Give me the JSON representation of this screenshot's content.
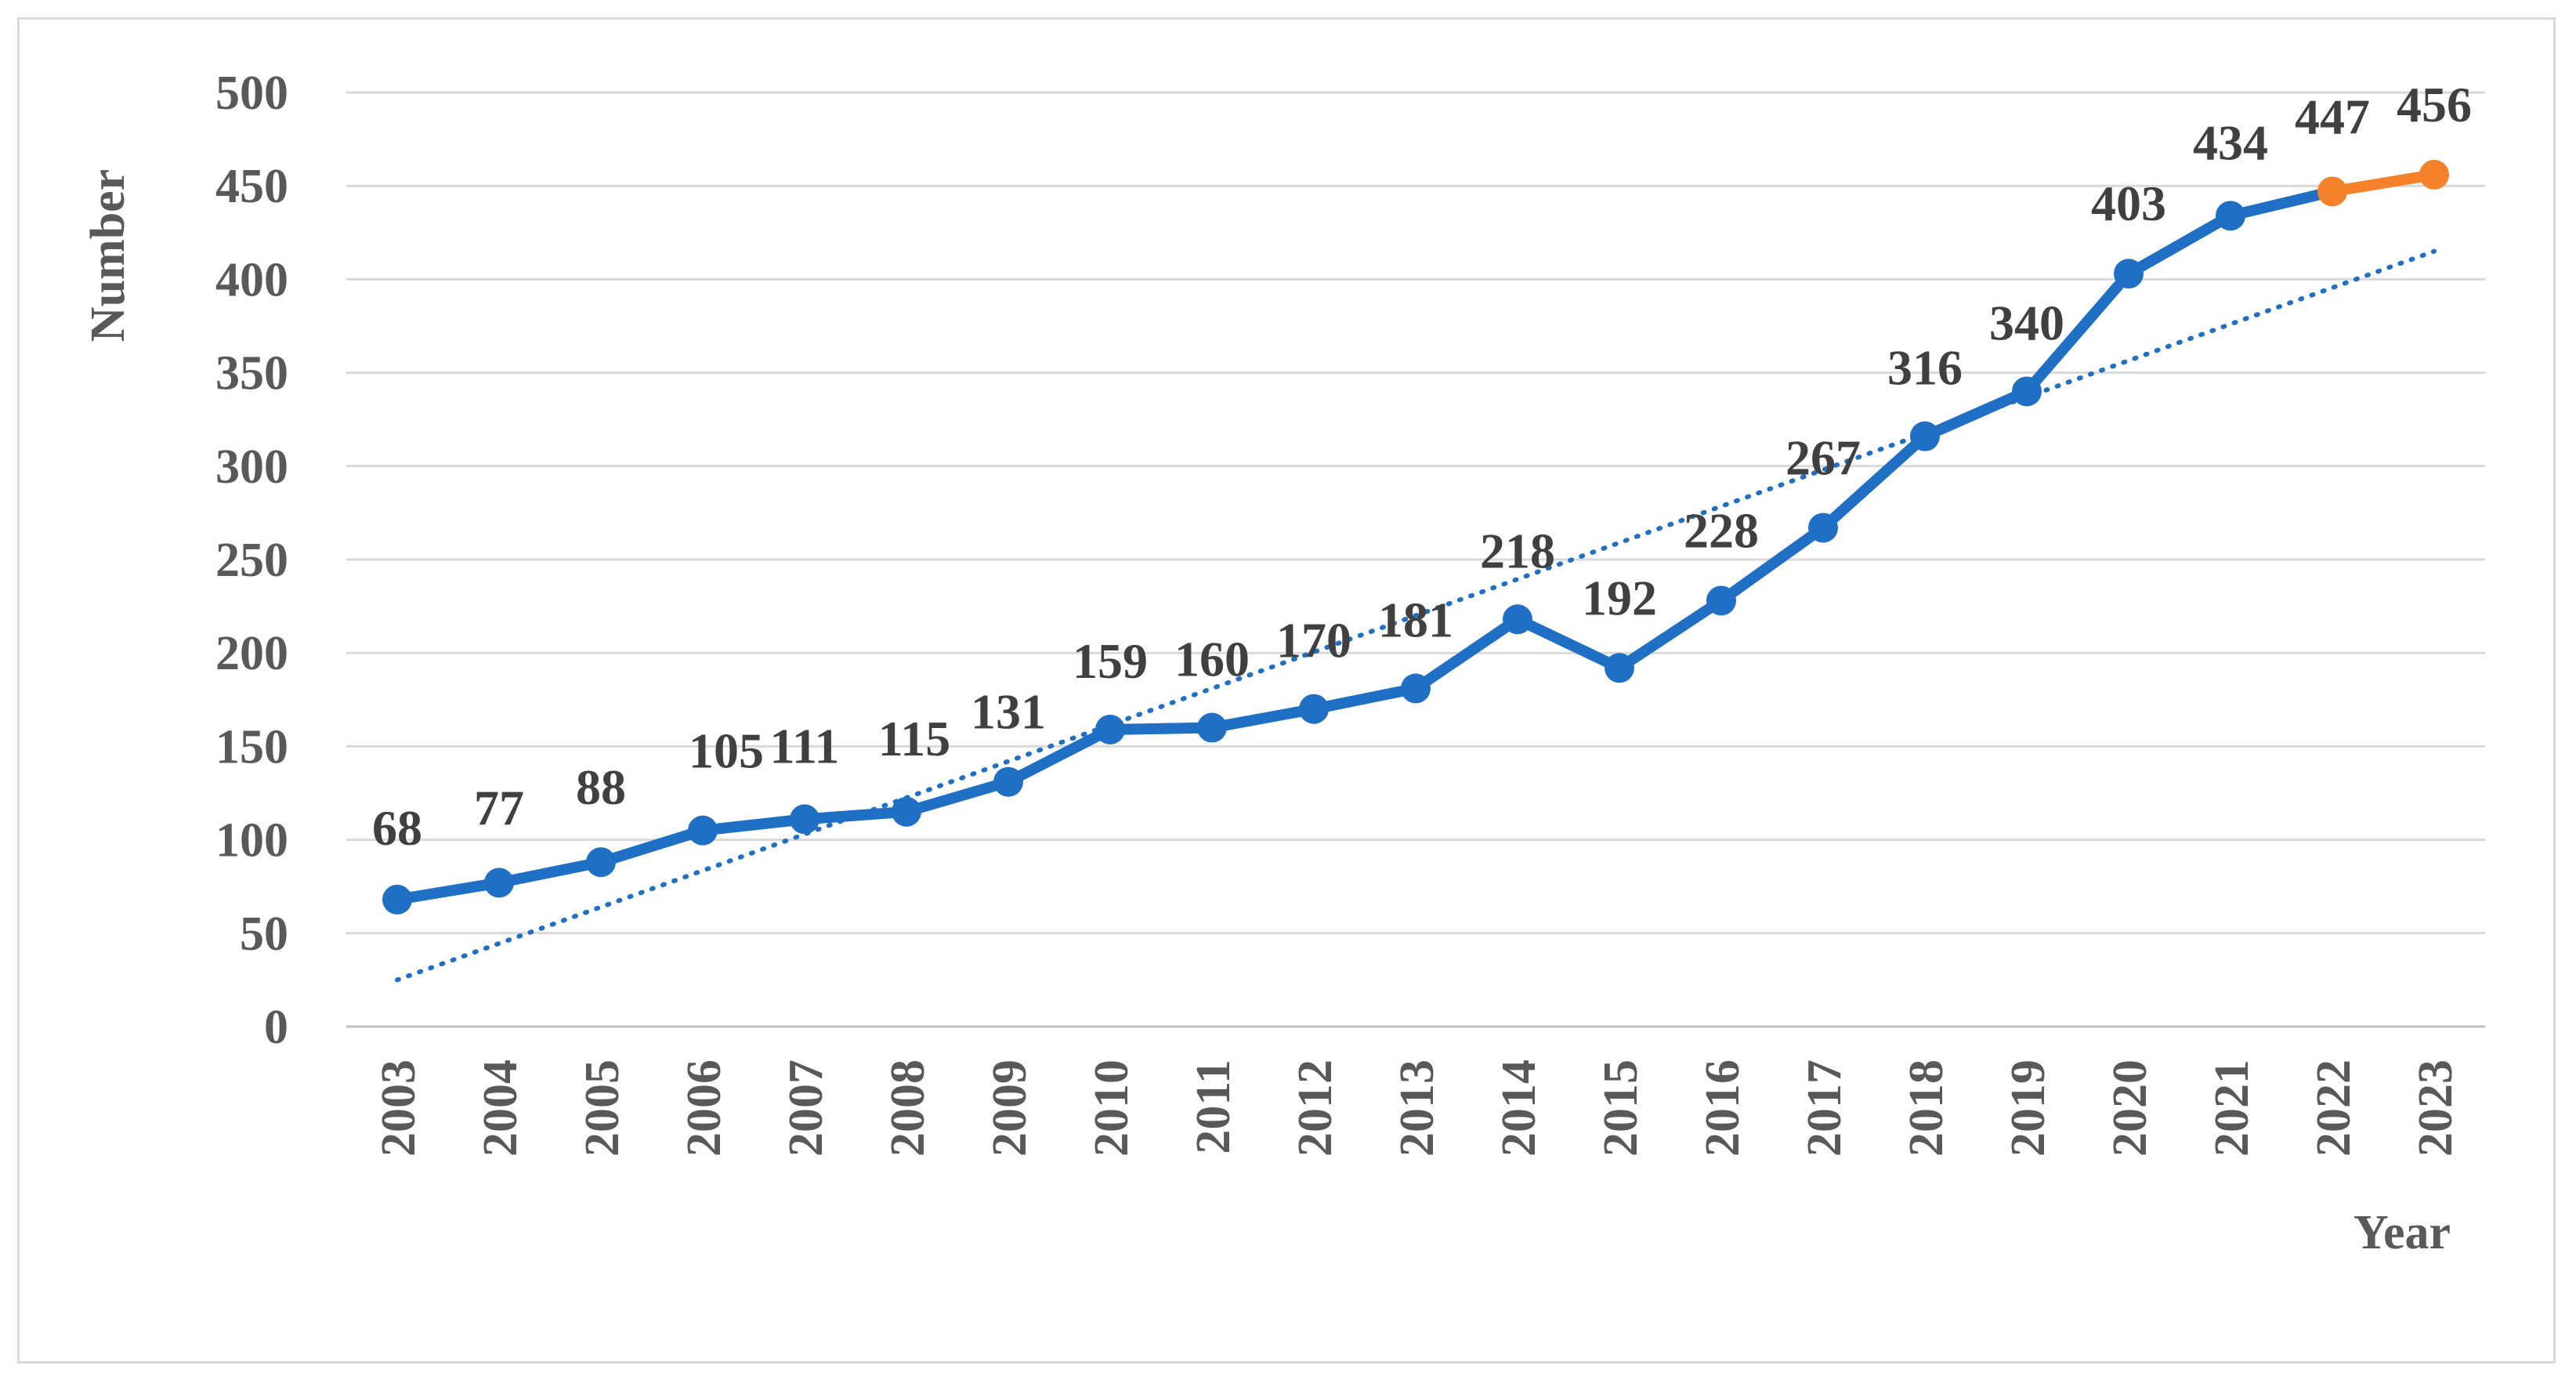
{
  "chart_data": {
    "type": "line",
    "title": "",
    "xlabel": "Year",
    "ylabel": "Number",
    "x": [
      "2003",
      "2004",
      "2005",
      "2006",
      "2007",
      "2008",
      "2009",
      "2010",
      "2011",
      "2012",
      "2013",
      "2014",
      "2015",
      "2016",
      "2017",
      "2018",
      "2019",
      "2020",
      "2021",
      "2022",
      "2023"
    ],
    "series": [
      {
        "values": [
          68,
          77,
          88,
          105,
          111,
          115,
          131,
          159,
          160,
          170,
          181,
          218,
          192,
          228,
          267,
          316,
          340,
          403,
          434,
          447,
          456
        ],
        "color": "#1f6fc5",
        "highlight_color": "#f5822a",
        "highlight_from_index": 19
      }
    ],
    "trendline": {
      "style": "dotted",
      "color": "#1f6fc5",
      "start_value": 25,
      "end_value": 415
    },
    "ylim": [
      0,
      500
    ],
    "yticks": [
      0,
      50,
      100,
      150,
      200,
      250,
      300,
      350,
      400,
      450,
      500
    ],
    "grid": true,
    "legend": "none"
  }
}
